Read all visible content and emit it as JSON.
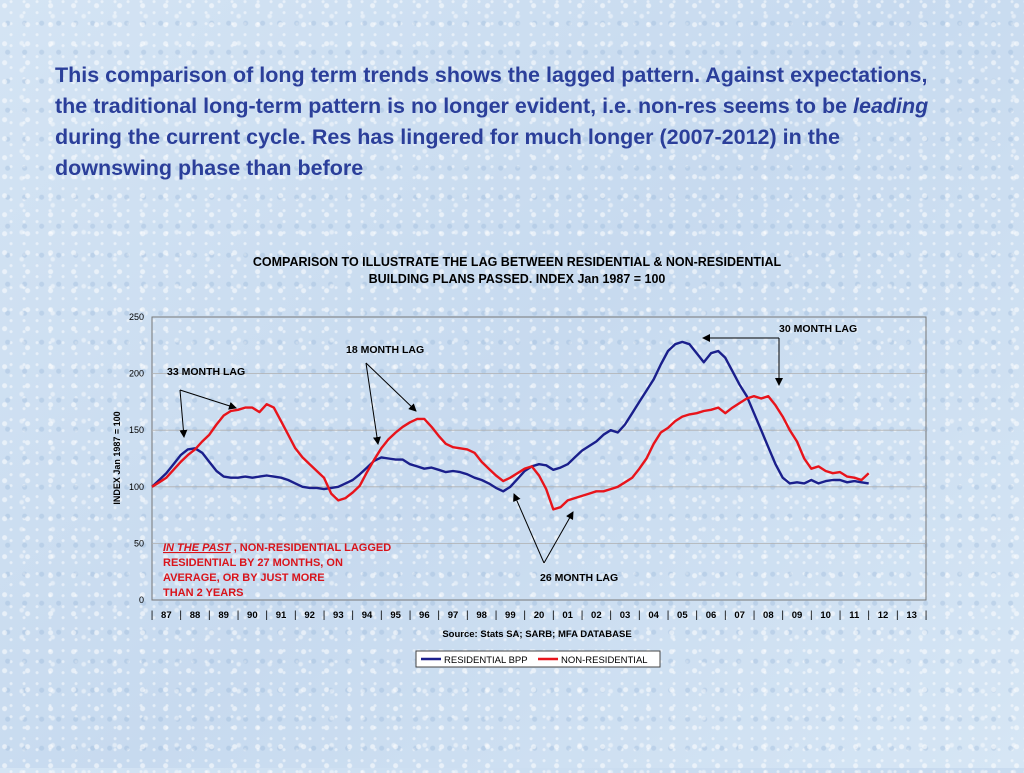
{
  "headline": {
    "part1": "This comparison of long term trends shows the lagged pattern.   Against expectations, the traditional long-term pattern is no longer evident, i.e. non-res seems to be ",
    "emphasis": "leading",
    "part2": " during the current cycle.  Res has lingered for much longer (2007-2012) in the downswing phase than before"
  },
  "colors": {
    "headline": "#2b3f9a",
    "residential": "#1a1f8c",
    "non_residential": "#e8141b",
    "note_text": "#d9141b",
    "annotation_text": "#000000"
  },
  "chart_data": {
    "type": "line",
    "title_line1": "COMPARISON TO ILLUSTRATE THE LAG BETWEEN RESIDENTIAL & NON-RESIDENTIAL",
    "title_line2": "BUILDING PLANS PASSED.     INDEX Jan 1987 = 100",
    "ylabel": "INDEX Jan 1987 = 100",
    "source": "Source: Stats SA; SARB; MFA DATABASE",
    "ylim": [
      0,
      250
    ],
    "xlim": [
      1987.0,
      2014.0
    ],
    "yticks": [
      0,
      50,
      100,
      150,
      200,
      250
    ],
    "xtick_labels": [
      "87",
      "88",
      "89",
      "90",
      "91",
      "92",
      "93",
      "94",
      "95",
      "96",
      "97",
      "98",
      "99",
      "20",
      "01",
      "02",
      "03",
      "04",
      "05",
      "06",
      "07",
      "08",
      "09",
      "10",
      "11",
      "12",
      "13"
    ],
    "legend_position": "bottom-center",
    "grid": "horizontal",
    "series": [
      {
        "name": "RESIDENTIAL BPP",
        "color": "#1a1f8c",
        "points": [
          [
            1987.0,
            100
          ],
          [
            1987.25,
            106
          ],
          [
            1987.5,
            112
          ],
          [
            1987.75,
            120
          ],
          [
            1988.0,
            128
          ],
          [
            1988.25,
            133
          ],
          [
            1988.5,
            134
          ],
          [
            1988.75,
            130
          ],
          [
            1989.0,
            122
          ],
          [
            1989.25,
            114
          ],
          [
            1989.5,
            109
          ],
          [
            1989.75,
            108
          ],
          [
            1990.0,
            108
          ],
          [
            1990.25,
            109
          ],
          [
            1990.5,
            108
          ],
          [
            1990.75,
            109
          ],
          [
            1991.0,
            110
          ],
          [
            1991.25,
            109
          ],
          [
            1991.5,
            108
          ],
          [
            1991.75,
            106
          ],
          [
            1992.0,
            103
          ],
          [
            1992.25,
            100
          ],
          [
            1992.5,
            99
          ],
          [
            1992.75,
            99
          ],
          [
            1993.0,
            98
          ],
          [
            1993.25,
            99
          ],
          [
            1993.5,
            100
          ],
          [
            1993.75,
            103
          ],
          [
            1994.0,
            106
          ],
          [
            1994.25,
            111
          ],
          [
            1994.5,
            117
          ],
          [
            1994.75,
            123
          ],
          [
            1995.0,
            126
          ],
          [
            1995.25,
            125
          ],
          [
            1995.5,
            124
          ],
          [
            1995.75,
            124
          ],
          [
            1996.0,
            120
          ],
          [
            1996.25,
            118
          ],
          [
            1996.5,
            116
          ],
          [
            1996.75,
            117
          ],
          [
            1997.0,
            115
          ],
          [
            1997.25,
            113
          ],
          [
            1997.5,
            114
          ],
          [
            1997.75,
            113
          ],
          [
            1998.0,
            111
          ],
          [
            1998.25,
            108
          ],
          [
            1998.5,
            106
          ],
          [
            1998.75,
            103
          ],
          [
            1999.0,
            99
          ],
          [
            1999.25,
            96
          ],
          [
            1999.5,
            100
          ],
          [
            1999.75,
            107
          ],
          [
            2000.0,
            114
          ],
          [
            2000.25,
            118
          ],
          [
            2000.5,
            120
          ],
          [
            2000.75,
            119
          ],
          [
            2001.0,
            115
          ],
          [
            2001.25,
            117
          ],
          [
            2001.5,
            120
          ],
          [
            2001.75,
            126
          ],
          [
            2002.0,
            132
          ],
          [
            2002.25,
            136
          ],
          [
            2002.5,
            140
          ],
          [
            2002.75,
            146
          ],
          [
            2003.0,
            150
          ],
          [
            2003.25,
            148
          ],
          [
            2003.5,
            155
          ],
          [
            2003.75,
            165
          ],
          [
            2004.0,
            175
          ],
          [
            2004.25,
            185
          ],
          [
            2004.5,
            195
          ],
          [
            2004.75,
            208
          ],
          [
            2005.0,
            220
          ],
          [
            2005.25,
            226
          ],
          [
            2005.5,
            228
          ],
          [
            2005.75,
            226
          ],
          [
            2006.0,
            218
          ],
          [
            2006.25,
            210
          ],
          [
            2006.5,
            218
          ],
          [
            2006.75,
            220
          ],
          [
            2007.0,
            214
          ],
          [
            2007.25,
            202
          ],
          [
            2007.5,
            190
          ],
          [
            2007.75,
            180
          ],
          [
            2008.0,
            165
          ],
          [
            2008.25,
            150
          ],
          [
            2008.5,
            135
          ],
          [
            2008.75,
            120
          ],
          [
            2009.0,
            108
          ],
          [
            2009.25,
            103
          ],
          [
            2009.5,
            104
          ],
          [
            2009.75,
            103
          ],
          [
            2010.0,
            106
          ],
          [
            2010.25,
            103
          ],
          [
            2010.5,
            105
          ],
          [
            2010.75,
            106
          ],
          [
            2011.0,
            106
          ],
          [
            2011.25,
            104
          ],
          [
            2011.5,
            105
          ],
          [
            2011.75,
            104
          ],
          [
            2012.0,
            103
          ]
        ]
      },
      {
        "name": "NON-RESIDENTIAL",
        "color": "#e8141b",
        "points": [
          [
            1987.0,
            100
          ],
          [
            1987.25,
            104
          ],
          [
            1987.5,
            108
          ],
          [
            1987.75,
            115
          ],
          [
            1988.0,
            122
          ],
          [
            1988.25,
            128
          ],
          [
            1988.5,
            133
          ],
          [
            1988.75,
            140
          ],
          [
            1989.0,
            146
          ],
          [
            1989.25,
            155
          ],
          [
            1989.5,
            163
          ],
          [
            1989.75,
            167
          ],
          [
            1990.0,
            168
          ],
          [
            1990.25,
            170
          ],
          [
            1990.5,
            170
          ],
          [
            1990.75,
            166
          ],
          [
            1991.0,
            173
          ],
          [
            1991.25,
            170
          ],
          [
            1991.5,
            158
          ],
          [
            1991.75,
            146
          ],
          [
            1992.0,
            134
          ],
          [
            1992.25,
            126
          ],
          [
            1992.5,
            120
          ],
          [
            1992.75,
            114
          ],
          [
            1993.0,
            108
          ],
          [
            1993.25,
            94
          ],
          [
            1993.5,
            88
          ],
          [
            1993.75,
            90
          ],
          [
            1994.0,
            95
          ],
          [
            1994.25,
            101
          ],
          [
            1994.5,
            113
          ],
          [
            1994.75,
            124
          ],
          [
            1995.0,
            134
          ],
          [
            1995.25,
            142
          ],
          [
            1995.5,
            148
          ],
          [
            1995.75,
            153
          ],
          [
            1996.0,
            157
          ],
          [
            1996.25,
            160
          ],
          [
            1996.5,
            160
          ],
          [
            1996.75,
            153
          ],
          [
            1997.0,
            145
          ],
          [
            1997.25,
            138
          ],
          [
            1997.5,
            135
          ],
          [
            1997.75,
            134
          ],
          [
            1998.0,
            133
          ],
          [
            1998.25,
            130
          ],
          [
            1998.5,
            122
          ],
          [
            1998.75,
            116
          ],
          [
            1999.0,
            110
          ],
          [
            1999.25,
            105
          ],
          [
            1999.5,
            108
          ],
          [
            1999.75,
            112
          ],
          [
            2000.0,
            116
          ],
          [
            2000.25,
            118
          ],
          [
            2000.5,
            110
          ],
          [
            2000.75,
            98
          ],
          [
            2001.0,
            80
          ],
          [
            2001.25,
            82
          ],
          [
            2001.5,
            88
          ],
          [
            2001.75,
            90
          ],
          [
            2002.0,
            92
          ],
          [
            2002.25,
            94
          ],
          [
            2002.5,
            96
          ],
          [
            2002.75,
            96
          ],
          [
            2003.0,
            98
          ],
          [
            2003.25,
            100
          ],
          [
            2003.5,
            104
          ],
          [
            2003.75,
            108
          ],
          [
            2004.0,
            116
          ],
          [
            2004.25,
            125
          ],
          [
            2004.5,
            138
          ],
          [
            2004.75,
            148
          ],
          [
            2005.0,
            152
          ],
          [
            2005.25,
            158
          ],
          [
            2005.5,
            162
          ],
          [
            2005.75,
            164
          ],
          [
            2006.0,
            165
          ],
          [
            2006.25,
            167
          ],
          [
            2006.5,
            168
          ],
          [
            2006.75,
            170
          ],
          [
            2007.0,
            165
          ],
          [
            2007.25,
            170
          ],
          [
            2007.5,
            174
          ],
          [
            2007.75,
            178
          ],
          [
            2008.0,
            180
          ],
          [
            2008.25,
            178
          ],
          [
            2008.5,
            180
          ],
          [
            2008.75,
            172
          ],
          [
            2009.0,
            162
          ],
          [
            2009.25,
            150
          ],
          [
            2009.5,
            140
          ],
          [
            2009.75,
            125
          ],
          [
            2010.0,
            116
          ],
          [
            2010.25,
            118
          ],
          [
            2010.5,
            114
          ],
          [
            2010.75,
            112
          ],
          [
            2011.0,
            113
          ],
          [
            2011.25,
            109
          ],
          [
            2011.5,
            108
          ],
          [
            2011.75,
            106
          ],
          [
            2012.0,
            112
          ]
        ]
      }
    ],
    "annotations": [
      {
        "text": "33 MONTH LAG",
        "id": "lag-33"
      },
      {
        "text": "18 MONTH LAG",
        "id": "lag-18"
      },
      {
        "text": "30 MONTH LAG",
        "id": "lag-30"
      },
      {
        "text": "26 MONTH LAG",
        "id": "lag-26"
      }
    ],
    "note": {
      "emphasis": "IN THE PAST",
      "line1_rest": " , NON-RESIDENTIAL LAGGED",
      "line2": "RESIDENTIAL BY 27 MONTHS, ON",
      "line3": "AVERAGE, OR BY JUST MORE",
      "line4": "THAN 2 YEARS"
    }
  }
}
